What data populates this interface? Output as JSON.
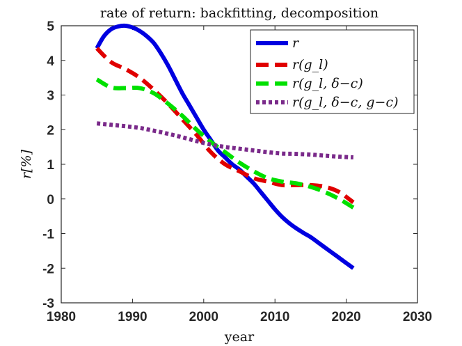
{
  "chart_data": {
    "type": "line",
    "title": "rate of return: backfitting, decomposition",
    "xlabel": "year",
    "ylabel": "r[%]",
    "xlim": [
      1980,
      2030
    ],
    "ylim": [
      -3,
      5
    ],
    "xticks": [
      1980,
      1990,
      2000,
      2010,
      2020,
      2030
    ],
    "yticks": [
      -3,
      -2,
      -1,
      0,
      1,
      2,
      3,
      4,
      5
    ],
    "grid": false,
    "legend_position": "top-right",
    "series": [
      {
        "name": "r",
        "color": "#0000e0",
        "style": "solid",
        "x": [
          1985,
          1986,
          1987,
          1988,
          1989,
          1990,
          1991,
          1992,
          1993,
          1994,
          1995,
          1996,
          1997,
          1998,
          1999,
          2000,
          2001,
          2002,
          2003,
          2004,
          2005,
          2006,
          2007,
          2008,
          2009,
          2010,
          2011,
          2012,
          2013,
          2014,
          2015,
          2016,
          2017,
          2018,
          2019,
          2020,
          2021
        ],
        "y": [
          4.35,
          4.7,
          4.9,
          4.98,
          5.0,
          4.95,
          4.85,
          4.7,
          4.5,
          4.2,
          3.85,
          3.45,
          3.05,
          2.7,
          2.35,
          2.0,
          1.7,
          1.4,
          1.2,
          1.0,
          0.85,
          0.65,
          0.45,
          0.2,
          -0.05,
          -0.3,
          -0.52,
          -0.7,
          -0.85,
          -0.98,
          -1.1,
          -1.25,
          -1.4,
          -1.55,
          -1.7,
          -1.85,
          -2.0
        ]
      },
      {
        "name": "r(g_l)",
        "color": "#e00000",
        "style": "dashed",
        "x": [
          1985,
          1987,
          1989,
          1991,
          1993,
          1995,
          1997,
          1999,
          2001,
          2003,
          2005,
          2007,
          2009,
          2011,
          2013,
          2015,
          2017,
          2019,
          2021
        ],
        "y": [
          4.35,
          3.95,
          3.75,
          3.5,
          3.15,
          2.75,
          2.3,
          1.85,
          1.35,
          1.0,
          0.8,
          0.6,
          0.5,
          0.4,
          0.4,
          0.4,
          0.35,
          0.2,
          -0.1
        ]
      },
      {
        "name": "r(g_l, δ−c)",
        "color": "#00e000",
        "style": "dashed",
        "x": [
          1985,
          1987,
          1989,
          1991,
          1993,
          1995,
          1997,
          1999,
          2001,
          2003,
          2005,
          2007,
          2009,
          2011,
          2013,
          2015,
          2017,
          2019,
          2021
        ],
        "y": [
          3.45,
          3.22,
          3.2,
          3.2,
          3.05,
          2.75,
          2.4,
          2.0,
          1.65,
          1.35,
          1.05,
          0.8,
          0.6,
          0.5,
          0.45,
          0.35,
          0.2,
          0.0,
          -0.25
        ]
      },
      {
        "name": "r(g_l, δ−c, g−c)",
        "color": "#7a2a8a",
        "style": "dotted",
        "x": [
          1985,
          1987,
          1989,
          1991,
          1993,
          1995,
          1997,
          1999,
          2001,
          2003,
          2005,
          2007,
          2009,
          2011,
          2013,
          2015,
          2017,
          2019,
          2021
        ],
        "y": [
          2.18,
          2.14,
          2.1,
          2.05,
          1.97,
          1.88,
          1.78,
          1.67,
          1.57,
          1.5,
          1.45,
          1.4,
          1.35,
          1.31,
          1.3,
          1.28,
          1.25,
          1.22,
          1.2
        ]
      }
    ]
  }
}
